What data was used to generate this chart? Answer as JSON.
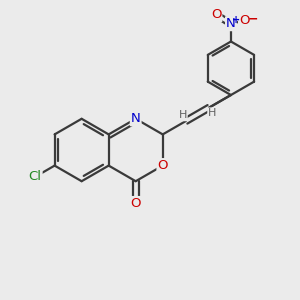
{
  "background_color": "#ebebeb",
  "bond_color": "#3a3a3a",
  "bond_width": 1.6,
  "atom_colors": {
    "N": "#0000cc",
    "O": "#cc0000",
    "Cl": "#228822",
    "H": "#606060",
    "plus": "#0000cc",
    "minus": "#cc0000"
  },
  "figsize": [
    3.0,
    3.0
  ],
  "dpi": 100
}
